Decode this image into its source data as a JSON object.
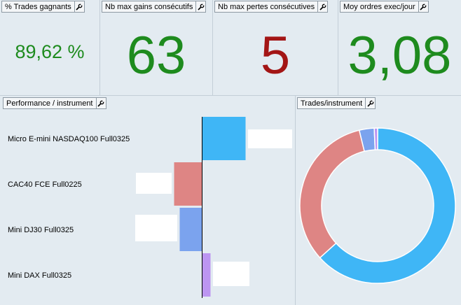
{
  "kpis": [
    {
      "title": "% Trades gagnants",
      "value": "89,62 %",
      "color": "#1e8b1e"
    },
    {
      "title": "Nb max gains consécutifs",
      "value": "63",
      "color": "#1e8b1e"
    },
    {
      "title": "Nb max pertes consécutives",
      "value": "5",
      "color": "#a31515"
    },
    {
      "title": "Moy ordres exec/jour",
      "value": "3,08",
      "color": "#1e8b1e"
    }
  ],
  "performance_panel": {
    "title": "Performance / instrument"
  },
  "trades_panel": {
    "title": "Trades/instrument"
  },
  "icons": {
    "config": "wrench-icon"
  },
  "chart_data": [
    {
      "type": "bar",
      "orientation": "horizontal",
      "categories": [
        "Micro E-mini NASDAQ100 Full0325",
        "CAC40 FCE Full0225",
        "Mini DJ30 Full0325",
        "Mini DAX Full0325"
      ],
      "values": [
        62,
        -40,
        -32,
        12
      ],
      "colors": [
        "#3fb6f6",
        "#de8584",
        "#7ba3ee",
        "#bc95f1"
      ]
    },
    {
      "type": "pie",
      "style": "donut",
      "categories": [
        "Micro E-mini NASDAQ100 Full0325",
        "CAC40 FCE Full0225",
        "Mini DJ30 Full0325",
        "Mini DAX Full0325"
      ],
      "values": [
        63.3,
        32.9,
        3.1,
        0.7
      ],
      "colors": [
        "#3fb6f6",
        "#de8584",
        "#7ba3ee",
        "#bc95f1"
      ]
    }
  ]
}
